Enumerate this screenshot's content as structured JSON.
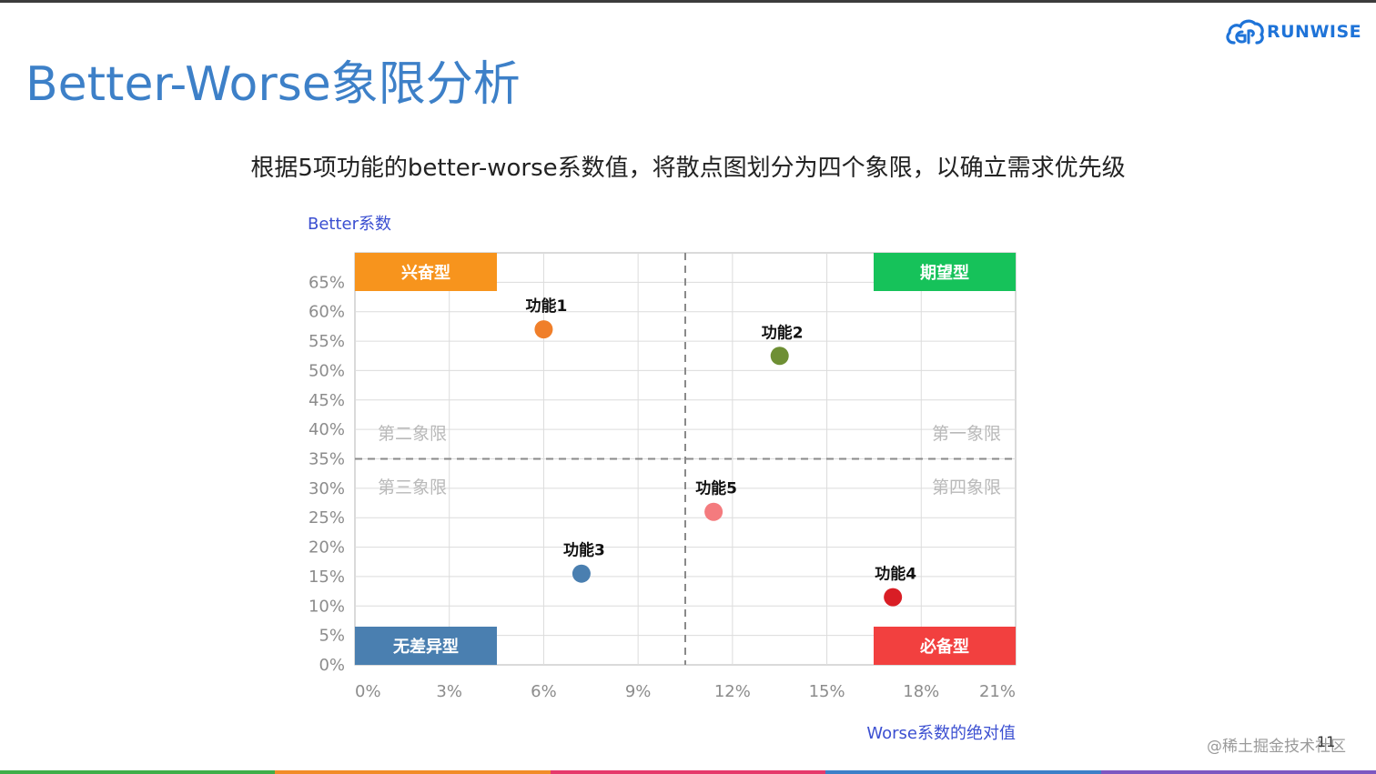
{
  "slide": {
    "title": "Better-Worse象限分析",
    "subtitle": "根据5项功能的better-worse系数值，将散点图划分为四个象限，以确立需求优先级",
    "logo_text": "RUNWISE",
    "watermark": "@稀土掘金技术社区",
    "page_number": "11",
    "brand_color": "#1e73d8",
    "title_color": "#3d80c8",
    "footer_colors": [
      "#3fae49",
      "#f28c28",
      "#e6396b",
      "#3d80c8",
      "#7d57c1"
    ]
  },
  "chart_data": {
    "type": "scatter",
    "xlabel": "Worse系数的绝对值",
    "ylabel": "Better系数",
    "x_ticks": [
      "0%",
      "3%",
      "6%",
      "9%",
      "12%",
      "15%",
      "18%",
      "21%"
    ],
    "y_ticks": [
      "0%",
      "5%",
      "10%",
      "15%",
      "20%",
      "25%",
      "30%",
      "35%",
      "40%",
      "45%",
      "50%",
      "55%",
      "60%",
      "65%"
    ],
    "xlim": [
      0,
      21
    ],
    "ylim": [
      0,
      70
    ],
    "x_unit": "%",
    "y_unit": "%",
    "grid": true,
    "divider": {
      "x": 10.5,
      "y": 35
    },
    "points": [
      {
        "label": "功能1",
        "x": 6.0,
        "y": 57,
        "color": "#f07f2a"
      },
      {
        "label": "功能2",
        "x": 13.5,
        "y": 52.5,
        "color": "#6e8f34"
      },
      {
        "label": "功能3",
        "x": 7.2,
        "y": 15.5,
        "color": "#4a7fb0"
      },
      {
        "label": "功能4",
        "x": 17.1,
        "y": 11.5,
        "color": "#d91e25"
      },
      {
        "label": "功能5",
        "x": 11.4,
        "y": 26,
        "color": "#f47b7e"
      }
    ],
    "quadrant_labels": [
      {
        "text": "第二象限",
        "pos": "upper-left"
      },
      {
        "text": "第一象限",
        "pos": "upper-right"
      },
      {
        "text": "第三象限",
        "pos": "lower-left"
      },
      {
        "text": "第四象限",
        "pos": "lower-right"
      }
    ],
    "category_badges": [
      {
        "text": "兴奋型",
        "corner": "top-left",
        "color": "#f7941d"
      },
      {
        "text": "期望型",
        "corner": "top-right",
        "color": "#16c25a"
      },
      {
        "text": "无差异型",
        "corner": "bottom-left",
        "color": "#4a7fb0"
      },
      {
        "text": "必备型",
        "corner": "bottom-right",
        "color": "#f2403f"
      }
    ]
  }
}
